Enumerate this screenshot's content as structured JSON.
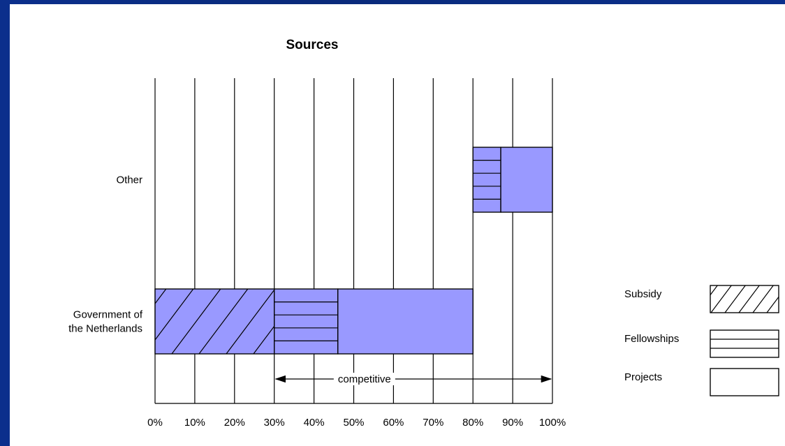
{
  "chart_data": {
    "type": "bar",
    "title": "Sources",
    "categories": [
      "Government of the Netherlands",
      "Other"
    ],
    "category_lines": [
      [
        "Government of",
        "the Netherlands"
      ],
      [
        "Other"
      ]
    ],
    "xlim": [
      0,
      100
    ],
    "xticks": [
      "0%",
      "10%",
      "20%",
      "30%",
      "40%",
      "50%",
      "60%",
      "70%",
      "80%",
      "90%",
      "100%"
    ],
    "stacked_segments": [
      {
        "category": "Government of the Netherlands",
        "series": "Subsidy",
        "start": 0,
        "end": 30
      },
      {
        "category": "Government of the Netherlands",
        "series": "Fellowships",
        "start": 30,
        "end": 46
      },
      {
        "category": "Government of the Netherlands",
        "series": "Projects",
        "start": 46,
        "end": 80
      },
      {
        "category": "Other",
        "series": "Fellowships",
        "start": 80,
        "end": 87
      },
      {
        "category": "Other",
        "series": "Projects",
        "start": 87,
        "end": 100
      }
    ],
    "annotation": {
      "text": "competitive",
      "from": 30,
      "to": 100
    },
    "legend": [
      "Subsidy",
      "Fellowships",
      "Projects"
    ],
    "legend_position": "right",
    "grid": "vertical",
    "bar_color": "#9999ff"
  }
}
